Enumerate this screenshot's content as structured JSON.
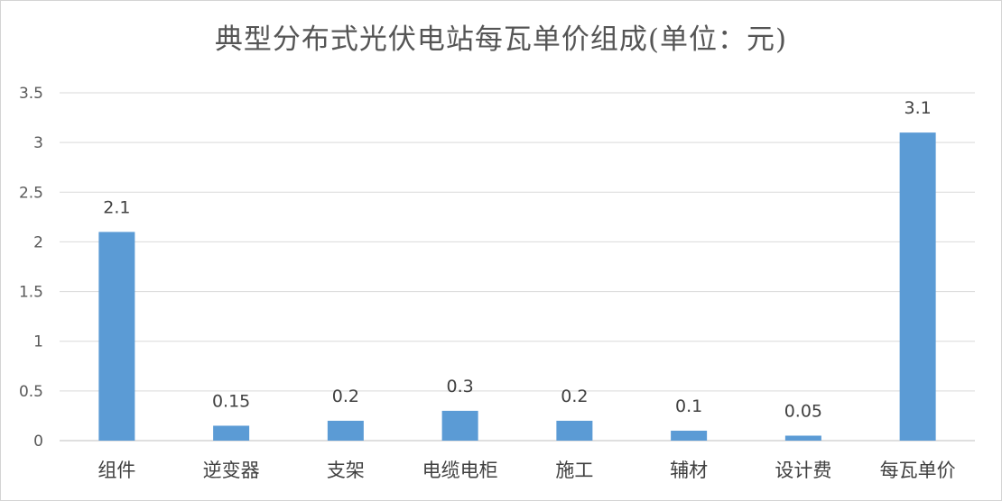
{
  "chart_data": {
    "type": "bar",
    "title": "典型分布式光伏电站每瓦单价组成(单位：元)",
    "categories": [
      "组件",
      "逆变器",
      "支架",
      "电缆电柜",
      "施工",
      "辅材",
      "设计费",
      "每瓦单价"
    ],
    "values": [
      2.1,
      0.15,
      0.2,
      0.3,
      0.2,
      0.1,
      0.05,
      3.1
    ],
    "data_labels": [
      "2.1",
      "0.15",
      "0.2",
      "0.3",
      "0.2",
      "0.1",
      "0.05",
      "3.1"
    ],
    "yticks": [
      "0",
      "0.5",
      "1",
      "1.5",
      "2",
      "2.5",
      "3",
      "3.5"
    ],
    "ylim": [
      0,
      3.5
    ],
    "xlabel": "",
    "ylabel": "",
    "grid": true,
    "legend": "none",
    "bar_color": "#5b9bd5",
    "grid_color": "#d9d9d9",
    "axis_color": "#bfbfbf"
  }
}
